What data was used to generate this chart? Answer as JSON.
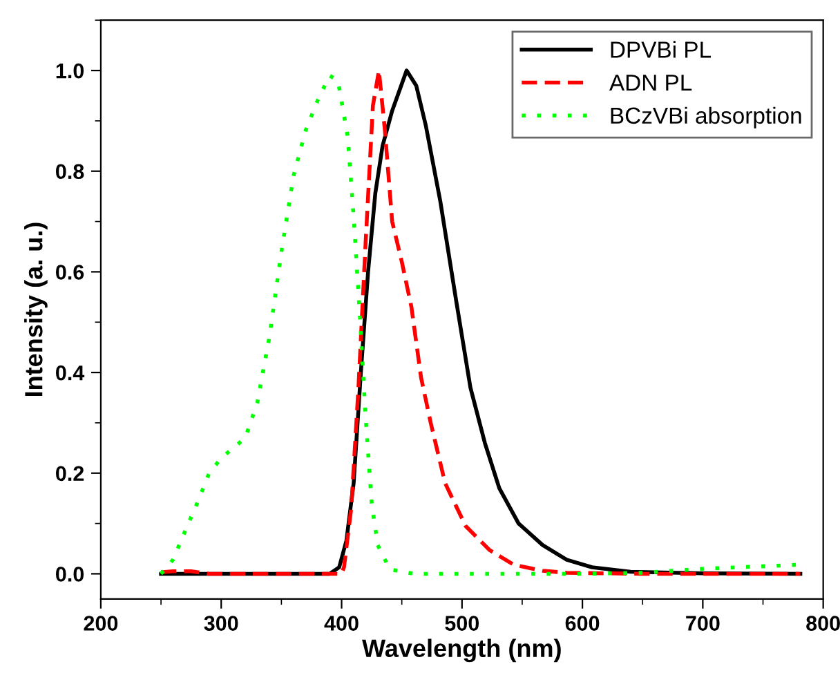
{
  "chart_data": {
    "type": "line",
    "xlabel": "Wavelength (nm)",
    "ylabel": "Intensity (a. u.)",
    "xlim": [
      200,
      800
    ],
    "ylim": [
      -0.05,
      1.1
    ],
    "xticks": [
      200,
      300,
      400,
      500,
      600,
      700,
      800
    ],
    "yticks": [
      {
        "value": 0,
        "label": "0.0"
      },
      {
        "value": 0.2,
        "label": "0.2"
      },
      {
        "value": 0.4,
        "label": "0.4"
      },
      {
        "value": 0.6,
        "label": "0.6"
      },
      {
        "value": 0.8,
        "label": "0.8"
      },
      {
        "value": 1.0,
        "label": "1.0"
      }
    ],
    "grid": false,
    "legend": "top right",
    "series": [
      {
        "name": "DPVBi PL",
        "color": "#000000",
        "line_style": "solid",
        "x": [
          250,
          300,
          350,
          390,
          398,
          404,
          410,
          416,
          422,
          428,
          434,
          442,
          454,
          462,
          470,
          482,
          495,
          507,
          519,
          531,
          547,
          567,
          587,
          608,
          640,
          700,
          781
        ],
        "values": [
          0,
          0,
          0,
          0,
          0.013,
          0.066,
          0.18,
          0.4,
          0.6,
          0.756,
          0.85,
          0.92,
          1.0,
          0.97,
          0.89,
          0.74,
          0.545,
          0.37,
          0.26,
          0.17,
          0.1,
          0.057,
          0.028,
          0.013,
          0.004,
          0.001,
          0
        ]
      },
      {
        "name": "ADN PL",
        "color": "#ff0000",
        "line_style": "dashed",
        "x": [
          250,
          260,
          275,
          290,
          350,
          400,
          402,
          408,
          414,
          420,
          426,
          431,
          436,
          442,
          450,
          458,
          466,
          474,
          486,
          503,
          523,
          543,
          567,
          587,
          650,
          781
        ],
        "values": [
          0.003,
          0.005,
          0.005,
          0,
          0,
          0,
          0.013,
          0.13,
          0.37,
          0.66,
          0.93,
          1.0,
          0.88,
          0.7,
          0.62,
          0.53,
          0.39,
          0.3,
          0.18,
          0.095,
          0.047,
          0.018,
          0.006,
          0.002,
          0,
          0
        ]
      },
      {
        "name": "BCzVBi absorption",
        "color": "#00ff00",
        "line_style": "dotted",
        "x": [
          250,
          260,
          270,
          280,
          290,
          300,
          310,
          320,
          330,
          340,
          350,
          360,
          370,
          380,
          390,
          397,
          405,
          410,
          415,
          420,
          425,
          430,
          440,
          460,
          600,
          650,
          700,
          780
        ],
        "values": [
          0,
          0.028,
          0.085,
          0.14,
          0.2,
          0.23,
          0.25,
          0.27,
          0.34,
          0.47,
          0.64,
          0.79,
          0.88,
          0.94,
          0.99,
          0.98,
          0.87,
          0.71,
          0.52,
          0.31,
          0.14,
          0.057,
          0.009,
          0,
          0,
          0.002,
          0.01,
          0.018
        ]
      }
    ]
  }
}
